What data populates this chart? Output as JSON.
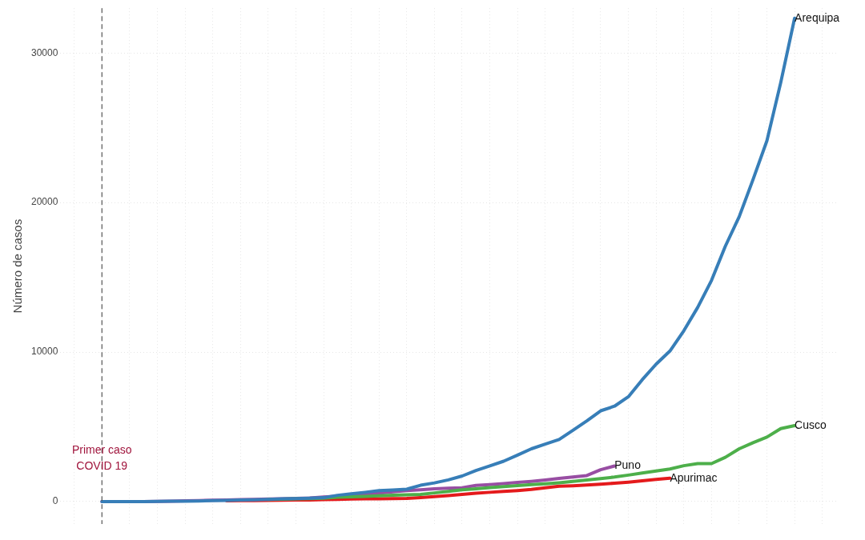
{
  "chart_data": {
    "type": "line",
    "ylabel": "Número de casos",
    "categories": [
      null,
      null,
      null,
      null,
      null,
      null,
      null,
      null,
      null,
      null,
      null,
      null,
      null,
      null,
      null,
      null,
      null,
      null,
      null,
      null,
      null,
      null,
      null,
      null,
      null,
      null,
      null,
      null,
      null,
      null,
      null,
      null,
      null,
      null,
      null,
      null,
      null,
      null,
      null,
      null,
      null,
      null,
      null,
      null,
      null,
      null,
      null,
      null,
      null,
      null,
      null,
      null,
      null,
      null,
      null,
      null,
      null
    ],
    "series": [
      {
        "name": "Arequipa",
        "color": "#377eb8",
        "values": [
          null,
          null,
          null,
          0,
          0,
          0,
          0,
          10,
          20,
          30,
          40,
          60,
          80,
          100,
          120,
          150,
          180,
          200,
          230,
          260,
          420,
          520,
          620,
          730,
          780,
          830,
          1090,
          1250,
          1450,
          1710,
          2080,
          2390,
          2700,
          3110,
          3530,
          3840,
          4150,
          4770,
          5400,
          6070,
          6380,
          7010,
          8150,
          9190,
          10070,
          11420,
          12980,
          14790,
          17080,
          19050,
          21540,
          24130,
          28030,
          32330,
          null,
          null,
          null
        ]
      },
      {
        "name": "Cusco",
        "color": "#4daf4a",
        "values": [
          null,
          null,
          null,
          null,
          null,
          null,
          null,
          null,
          null,
          null,
          null,
          null,
          null,
          null,
          null,
          140,
          160,
          180,
          200,
          230,
          290,
          320,
          350,
          390,
          420,
          450,
          480,
          580,
          680,
          790,
          860,
          930,
          1000,
          1070,
          1130,
          1190,
          1260,
          1350,
          1440,
          1540,
          1640,
          1770,
          1910,
          2050,
          2180,
          2400,
          2540,
          2540,
          2960,
          3530,
          3940,
          4310,
          4880,
          5080,
          null,
          null,
          null
        ]
      },
      {
        "name": "Puno",
        "color": "#984ea3",
        "values": [
          null,
          null,
          null,
          0,
          0,
          0,
          0,
          10,
          30,
          50,
          70,
          90,
          110,
          130,
          150,
          170,
          190,
          210,
          240,
          300,
          360,
          410,
          470,
          560,
          650,
          730,
          790,
          850,
          890,
          920,
          1080,
          1140,
          1200,
          1280,
          1350,
          1440,
          1550,
          1640,
          1740,
          2130,
          2380,
          null,
          null,
          null,
          null,
          null,
          null,
          null,
          null,
          null,
          null,
          null,
          null,
          null,
          null,
          null,
          null
        ]
      },
      {
        "name": "Apurimac",
        "color": "#e41a1c",
        "values": [
          null,
          null,
          null,
          null,
          null,
          null,
          null,
          null,
          null,
          null,
          null,
          null,
          50,
          60,
          70,
          80,
          90,
          100,
          110,
          130,
          150,
          170,
          180,
          190,
          200,
          210,
          260,
          330,
          400,
          480,
          560,
          620,
          680,
          740,
          810,
          920,
          1030,
          1060,
          1110,
          1160,
          1230,
          1300,
          1390,
          1480,
          1560,
          null,
          null,
          null,
          null,
          null,
          null,
          null,
          null,
          null,
          null,
          null,
          null
        ]
      }
    ],
    "ylim": [
      -1500,
      33000
    ],
    "yticks": [
      0,
      10000,
      20000,
      30000
    ],
    "grid": true,
    "legend": false,
    "tick_labels": "y",
    "annotations": [
      "Primer caso COVID 19"
    ]
  }
}
